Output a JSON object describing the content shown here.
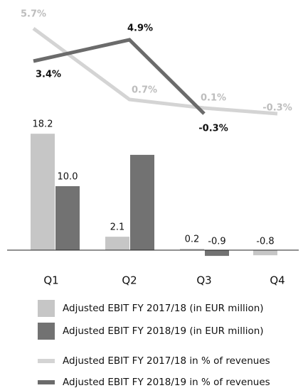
{
  "chart_data": {
    "type": "bar",
    "categories": [
      "Q1",
      "Q2",
      "Q3",
      "Q4"
    ],
    "ylim": [
      -1.5,
      20
    ],
    "y2lim": [
      -0.9,
      6.7
    ],
    "series": [
      {
        "name": "Adjusted EBIT FY 2017/18 (in EUR million)",
        "type": "bar",
        "color": "#c6c6c6",
        "values": [
          18.2,
          2.1,
          0.2,
          -0.8
        ],
        "value_labels": [
          "18.2",
          "2.1",
          "0.2",
          "-0.8"
        ]
      },
      {
        "name": "Adjusted EBIT FY 2018/19 (in EUR million)",
        "type": "bar",
        "color": "#727272",
        "values": [
          10.0,
          14.9,
          -0.9,
          null
        ],
        "value_labels": [
          "10.0",
          null,
          "-0.9",
          null
        ]
      },
      {
        "name": "Adjusted EBIT FY 2017/18 in % of revenues",
        "type": "line",
        "axis": "y2",
        "color": "#d4d4d4",
        "label_color": "#bdbdbd",
        "values": [
          5.7,
          0.7,
          0.1,
          -0.3
        ],
        "value_labels": [
          "5.7%",
          "0.7%",
          "0.1%",
          "-0.3%"
        ]
      },
      {
        "name": "Adjusted EBIT FY 2018/19 in % of revenues",
        "type": "line",
        "axis": "y2",
        "color": "#6b6b6b",
        "label_color": "#111111",
        "values": [
          3.4,
          4.9,
          -0.3,
          null
        ],
        "value_labels": [
          "3.4%",
          "4.9%",
          "-0.3%",
          null
        ]
      }
    ]
  }
}
